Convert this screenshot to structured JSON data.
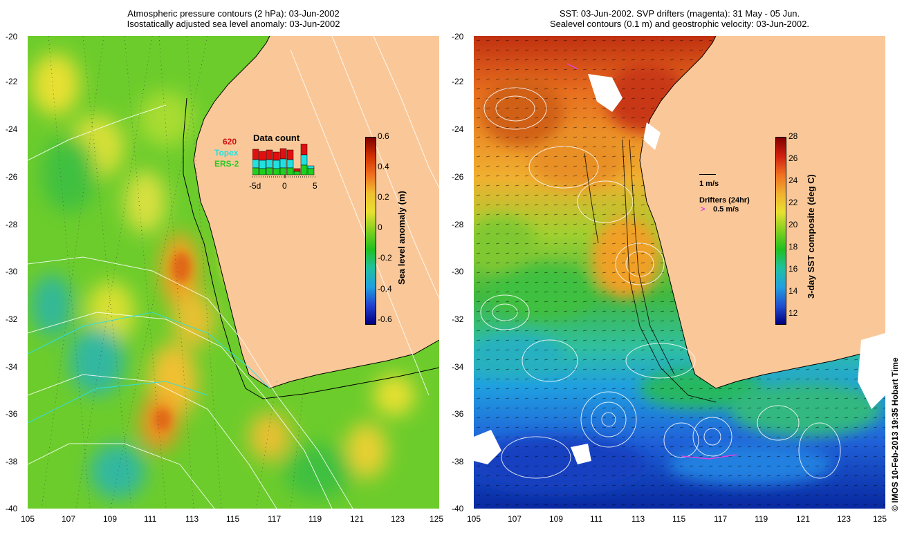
{
  "left_panel": {
    "title_line1": "Atmospheric pressure contours (2 hPa): 03-Jun-2002",
    "title_line2": "Isostatically adjusted sea level anomaly: 03-Jun-2002",
    "colorbar": {
      "label": "Sea level anomaly (m)",
      "ticks": [
        "0.6",
        "0.4",
        "0.2",
        "0",
        "-0.2",
        "-0.4",
        "-0.6"
      ]
    },
    "inset": {
      "title": "Data count",
      "legend": [
        {
          "text": "620",
          "color": "#d01010"
        },
        {
          "text": "Topex",
          "color": "#22e0e0"
        },
        {
          "text": "ERS-2",
          "color": "#22cc22"
        }
      ],
      "xticks": [
        "-5d",
        "0",
        "5"
      ]
    }
  },
  "right_panel": {
    "title_line1": "SST: 03-Jun-2002. SVP drifters (magenta): 31 May - 05 Jun.",
    "title_line2": "Sealevel contours (0.1 m) and geostrophic velocity: 03-Jun-2002.",
    "colorbar": {
      "label": "3-day SST composite (deg C)",
      "ticks": [
        "28",
        "26",
        "24",
        "22",
        "20",
        "18",
        "16",
        "14",
        "12"
      ]
    },
    "velocity_scale": "1 m/s",
    "drifters_label": "Drifters (24hr)",
    "drifters_scale": "0.5 m/s"
  },
  "axes": {
    "yticks": [
      "-20",
      "-22",
      "-24",
      "-26",
      "-28",
      "-30",
      "-32",
      "-34",
      "-36",
      "-38",
      "-40"
    ],
    "xticks": [
      "105",
      "107",
      "109",
      "111",
      "113",
      "115",
      "117",
      "119",
      "121",
      "123",
      "125"
    ]
  },
  "credit": "© IMOS 10-Feb-2013 19:35 Hobart Time",
  "colors": {
    "land": "#fac898",
    "ocean_left": "#7ad62a",
    "ocean_right_north": "#f08a20",
    "ocean_right_south": "#1a5ad0"
  }
}
